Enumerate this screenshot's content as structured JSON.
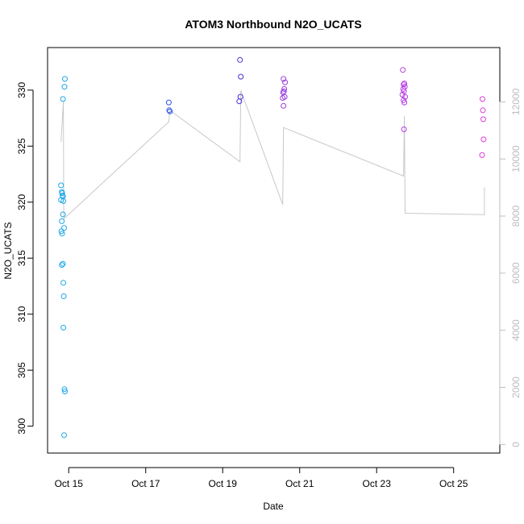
{
  "chart_data": {
    "type": "scatter",
    "title": "ATOM3 Northbound N2O_UCATS",
    "xlabel": "Date",
    "ylabel": "N2O_UCATS",
    "ylabel_right": "",
    "xlim": [
      14.45,
      26.2
    ],
    "ylim": [
      297.6,
      333.8
    ],
    "ylim_right": [
      -300,
      13900
    ],
    "x_ticks": [
      {
        "value": 15,
        "label": "Oct 15"
      },
      {
        "value": 17,
        "label": "Oct 17"
      },
      {
        "value": 19,
        "label": "Oct 19"
      },
      {
        "value": 21,
        "label": "Oct 21"
      },
      {
        "value": 23,
        "label": "Oct 23"
      },
      {
        "value": 25,
        "label": "Oct 25"
      }
    ],
    "y_ticks": [
      300,
      305,
      310,
      315,
      320,
      325,
      330
    ],
    "y_ticks_right": [
      0,
      2000,
      4000,
      6000,
      8000,
      10000,
      12000
    ],
    "grid": false,
    "series": [
      {
        "color": "#1ea7e8",
        "points": [
          [
            14.8,
            321.5
          ],
          [
            14.82,
            320.9
          ],
          [
            14.83,
            320.8
          ],
          [
            14.84,
            320.6
          ],
          [
            14.85,
            320.5
          ],
          [
            14.8,
            320.2
          ],
          [
            14.86,
            320.1
          ],
          [
            14.85,
            318.9
          ],
          [
            14.82,
            318.3
          ],
          [
            14.88,
            317.7
          ],
          [
            14.81,
            317.4
          ],
          [
            14.83,
            317.2
          ],
          [
            14.85,
            314.5
          ],
          [
            14.82,
            314.4
          ],
          [
            14.86,
            312.8
          ],
          [
            14.87,
            311.6
          ],
          [
            14.86,
            308.8
          ],
          [
            14.89,
            303.3
          ],
          [
            14.9,
            303.1
          ],
          [
            14.88,
            299.2
          ],
          [
            14.85,
            329.2
          ],
          [
            14.89,
            330.3
          ],
          [
            14.9,
            331.0
          ]
        ]
      },
      {
        "color": "#2f55e8",
        "points": [
          [
            17.6,
            328.9
          ],
          [
            17.61,
            328.2
          ],
          [
            17.63,
            328.1
          ]
        ]
      },
      {
        "color": "#4a2fd8",
        "points": [
          [
            19.45,
            332.7
          ],
          [
            19.47,
            331.2
          ],
          [
            19.43,
            329.0
          ],
          [
            19.46,
            329.4
          ]
        ]
      },
      {
        "color": "#9a3ee0",
        "points": [
          [
            20.58,
            331.0
          ],
          [
            20.62,
            330.7
          ],
          [
            20.6,
            330.1
          ],
          [
            20.59,
            329.9
          ],
          [
            20.57,
            329.8
          ],
          [
            20.61,
            329.4
          ],
          [
            20.56,
            329.3
          ],
          [
            20.58,
            328.6
          ]
        ]
      },
      {
        "color": "#b63ce0",
        "points": [
          [
            23.68,
            331.8
          ],
          [
            23.72,
            330.6
          ],
          [
            23.7,
            330.5
          ],
          [
            23.73,
            330.3
          ],
          [
            23.69,
            330.1
          ],
          [
            23.71,
            329.9
          ],
          [
            23.67,
            329.6
          ],
          [
            23.74,
            329.4
          ],
          [
            23.7,
            329.1
          ],
          [
            23.72,
            328.9
          ],
          [
            23.71,
            326.5
          ]
        ]
      },
      {
        "color": "#e03ad8",
        "points": [
          [
            25.75,
            329.2
          ],
          [
            25.76,
            328.2
          ],
          [
            25.77,
            327.4
          ],
          [
            25.78,
            325.6
          ],
          [
            25.74,
            324.2
          ]
        ]
      }
    ],
    "altitude_series": {
      "color": "#c8c8c8",
      "axis": "right",
      "points": [
        [
          14.8,
          10600
        ],
        [
          14.86,
          12000
        ],
        [
          14.87,
          7900
        ],
        [
          17.6,
          11300
        ],
        [
          17.63,
          11700
        ],
        [
          19.45,
          9900
        ],
        [
          19.47,
          12400
        ],
        [
          20.56,
          8400
        ],
        [
          20.58,
          11100
        ],
        [
          23.7,
          9400
        ],
        [
          23.72,
          11500
        ],
        [
          23.74,
          8100
        ],
        [
          25.8,
          8050
        ],
        [
          25.8,
          9000
        ]
      ]
    }
  }
}
